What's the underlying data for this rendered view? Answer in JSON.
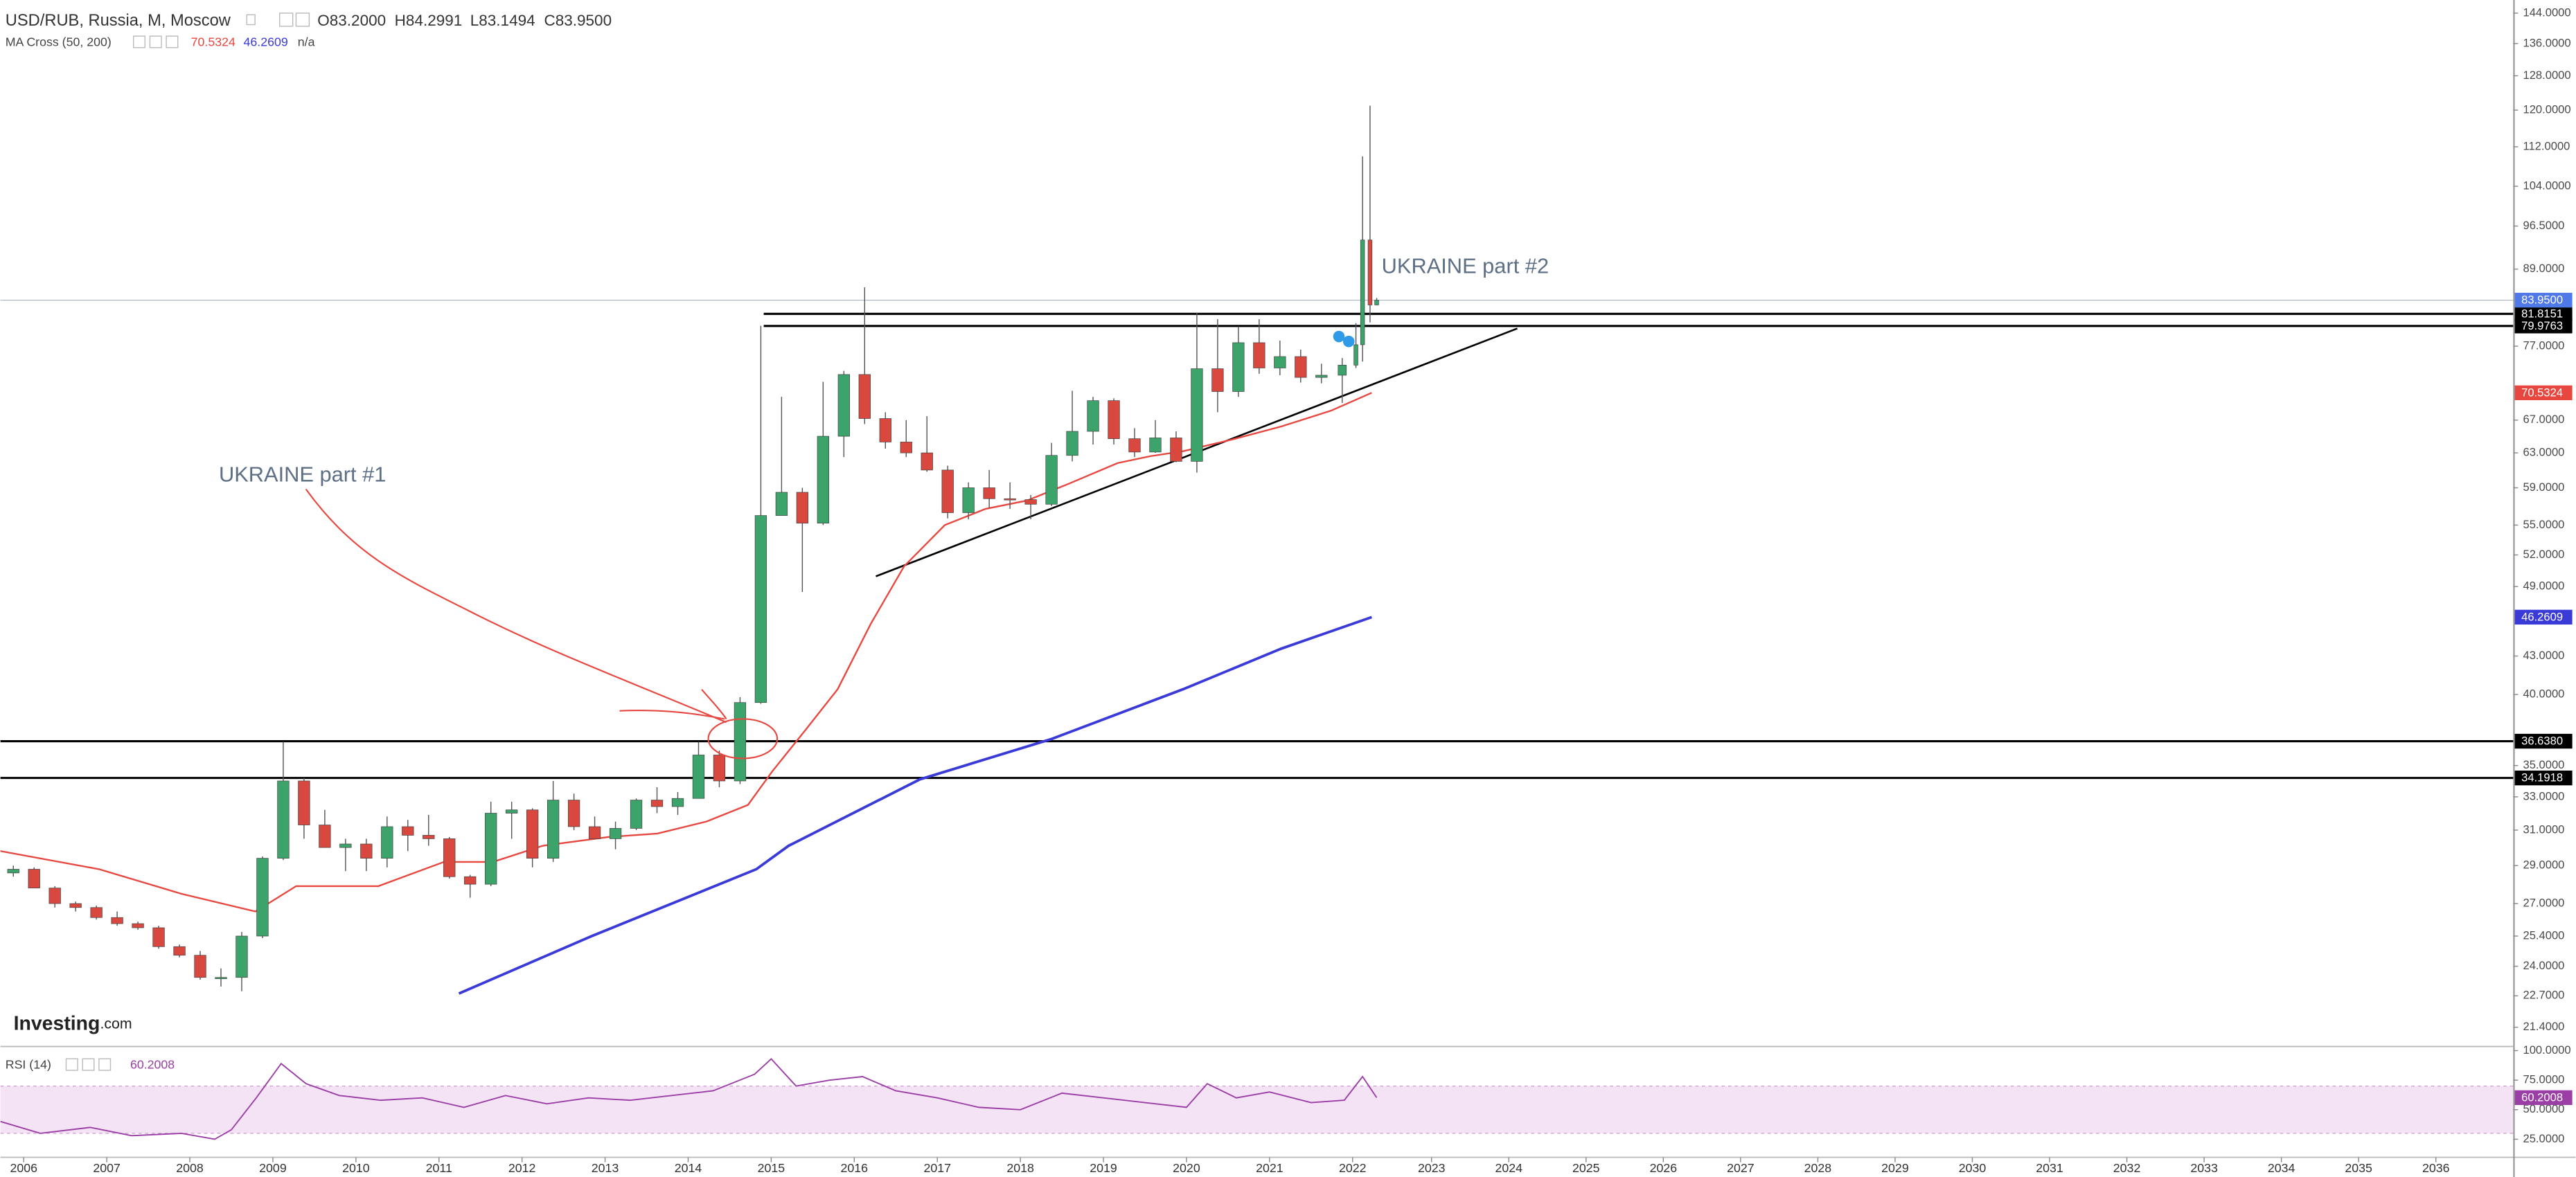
{
  "chart_data": {
    "type": "candlestick",
    "title": "USD/RUB, Russia, M, Moscow",
    "ohlc_labels": [
      "O83.2000",
      "H84.2991",
      "L83.1494",
      "C83.9500"
    ],
    "up_color": "#3ca46b",
    "down_color": "#d8483e",
    "log": true,
    "xlim": [
      2005.72,
      2037.0
    ],
    "xticks": [
      2006,
      2007,
      2008,
      2009,
      2010,
      2011,
      2012,
      2013,
      2014,
      2015,
      2016,
      2017,
      2018,
      2019,
      2020,
      2021,
      2022,
      2023,
      2024,
      2025,
      2026,
      2027,
      2028,
      2029,
      2030,
      2031,
      2032,
      2033,
      2034,
      2035,
      2036
    ],
    "ylim": [
      20.67,
      147.6
    ],
    "yticks": [
      {
        "value": 144,
        "label": "144.0000"
      },
      {
        "value": 136,
        "label": "136.0000"
      },
      {
        "value": 128,
        "label": "128.0000"
      },
      {
        "value": 120,
        "label": "120.0000"
      },
      {
        "value": 112,
        "label": "112.0000"
      },
      {
        "value": 104,
        "label": "104.0000"
      },
      {
        "value": 96.5,
        "label": "96.5000"
      },
      {
        "value": 89,
        "label": "89.0000"
      },
      {
        "value": 77,
        "label": "77.0000"
      },
      {
        "value": 67,
        "label": "67.0000"
      },
      {
        "value": 63,
        "label": "63.0000"
      },
      {
        "value": 59,
        "label": "59.0000"
      },
      {
        "value": 55,
        "label": "55.0000"
      },
      {
        "value": 52,
        "label": "52.0000"
      },
      {
        "value": 49,
        "label": "49.0000"
      },
      {
        "value": 43,
        "label": "43.0000"
      },
      {
        "value": 40,
        "label": "40.0000"
      },
      {
        "value": 35,
        "label": "35.0000"
      },
      {
        "value": 33,
        "label": "33.0000"
      },
      {
        "value": 31,
        "label": "31.0000"
      },
      {
        "value": 29,
        "label": "29.0000"
      },
      {
        "value": 27,
        "label": "27.0000"
      },
      {
        "value": 25.4,
        "label": "25.4000"
      },
      {
        "value": 24,
        "label": "24.0000"
      },
      {
        "value": 22.7,
        "label": "22.7000"
      },
      {
        "value": 21.4,
        "label": "21.4000"
      }
    ],
    "x": [
      2005.875,
      2006.125,
      2006.375,
      2006.625,
      2006.875,
      2007.125,
      2007.375,
      2007.625,
      2007.875,
      2008.125,
      2008.375,
      2008.625,
      2008.875,
      2009.125,
      2009.375,
      2009.625,
      2009.875,
      2010.125,
      2010.375,
      2010.625,
      2010.875,
      2011.125,
      2011.375,
      2011.625,
      2011.875,
      2012.125,
      2012.375,
      2012.625,
      2012.875,
      2013.125,
      2013.375,
      2013.625,
      2013.875,
      2014.125,
      2014.375,
      2014.625,
      2014.875,
      2015.125,
      2015.375,
      2015.625,
      2015.875,
      2016.125,
      2016.375,
      2016.625,
      2016.875,
      2017.125,
      2017.375,
      2017.625,
      2017.875,
      2018.125,
      2018.375,
      2018.625,
      2018.875,
      2019.125,
      2019.375,
      2019.625,
      2019.875,
      2020.125,
      2020.375,
      2020.625,
      2020.875,
      2021.125,
      2021.375,
      2021.625,
      2021.875,
      2022.04,
      2022.12,
      2022.21,
      2022.29
    ],
    "open": [
      28.6,
      28.8,
      27.8,
      27.0,
      26.8,
      26.3,
      26.0,
      25.8,
      24.9,
      24.5,
      23.5,
      23.5,
      25.4,
      29.4,
      34.0,
      31.3,
      30.0,
      30.2,
      29.4,
      31.2,
      30.7,
      30.5,
      28.4,
      28.0,
      32.0,
      32.2,
      29.4,
      32.8,
      31.2,
      30.5,
      31.1,
      32.8,
      32.4,
      32.9,
      35.7,
      34.0,
      39.4,
      56.0,
      58.5,
      55.2,
      65.0,
      73.0,
      67.2,
      64.3,
      63.0,
      61.0,
      56.3,
      59.0,
      57.8,
      57.7,
      57.2,
      62.7,
      65.6,
      69.5,
      64.7,
      63.1,
      64.8,
      62.0,
      73.8,
      70.7,
      77.5,
      73.9,
      75.5,
      72.6,
      72.9,
      74.3,
      77.2,
      94.0,
      83.2
    ],
    "high": [
      29.0,
      28.9,
      27.9,
      27.1,
      26.9,
      26.6,
      26.1,
      25.9,
      25.0,
      24.7,
      23.9,
      25.6,
      29.5,
      36.6,
      34.2,
      32.2,
      30.5,
      30.5,
      31.8,
      31.6,
      31.9,
      30.6,
      28.5,
      32.7,
      32.7,
      32.3,
      34.0,
      33.2,
      31.8,
      31.5,
      32.9,
      33.6,
      33.3,
      36.6,
      36.0,
      39.8,
      80.0,
      70.0,
      59.0,
      72.0,
      73.5,
      86.0,
      68.0,
      67.0,
      67.5,
      61.5,
      59.6,
      61.0,
      59.6,
      58.2,
      64.2,
      70.8,
      70.0,
      69.8,
      66.0,
      67.0,
      65.6,
      82.0,
      81.0,
      79.9,
      81.0,
      77.8,
      76.5,
      74.5,
      75.3,
      80.4,
      110.0,
      121.0,
      84.2991
    ],
    "low": [
      28.4,
      27.8,
      26.8,
      26.6,
      26.2,
      25.9,
      25.7,
      24.8,
      24.4,
      23.4,
      23.1,
      22.9,
      25.3,
      29.3,
      30.5,
      30.0,
      28.7,
      28.7,
      28.9,
      29.8,
      30.1,
      28.3,
      27.3,
      27.9,
      30.5,
      28.9,
      29.2,
      31.0,
      30.5,
      29.9,
      31.0,
      32.0,
      31.9,
      32.9,
      33.6,
      33.8,
      39.3,
      56.0,
      48.5,
      55.0,
      62.5,
      66.5,
      63.5,
      62.5,
      60.8,
      55.7,
      55.6,
      56.8,
      56.7,
      55.6,
      57.0,
      62.0,
      64.0,
      64.0,
      62.5,
      63.0,
      61.9,
      60.7,
      68.0,
      70.0,
      73.1,
      72.9,
      71.9,
      71.8,
      69.2,
      73.9,
      74.8,
      80.5,
      83.1494
    ],
    "close": [
      28.8,
      27.8,
      27.0,
      26.8,
      26.3,
      26.0,
      25.8,
      24.9,
      24.5,
      23.5,
      23.5,
      25.4,
      29.4,
      34.0,
      31.3,
      30.0,
      30.2,
      29.4,
      31.2,
      30.7,
      30.5,
      28.4,
      28.0,
      32.0,
      32.2,
      29.4,
      32.8,
      31.2,
      30.5,
      31.1,
      32.8,
      32.4,
      32.9,
      35.7,
      34.0,
      39.4,
      56.0,
      58.5,
      55.2,
      65.0,
      73.0,
      67.2,
      64.3,
      63.0,
      61.0,
      56.3,
      59.0,
      57.8,
      57.7,
      57.2,
      62.7,
      65.6,
      69.5,
      64.7,
      63.1,
      64.8,
      62.0,
      73.8,
      70.7,
      77.5,
      73.9,
      75.5,
      72.6,
      72.9,
      74.3,
      77.2,
      94.0,
      83.2,
      83.95
    ],
    "last": {
      "value": 83.95,
      "label": "83.9500",
      "color": "#4f79e8"
    },
    "indicator": {
      "name": "MA Cross (50, 200)",
      "na": "n/a",
      "series": [
        {
          "color": "#e8473f",
          "x": [
            2005.72,
            2006.91,
            2007.9,
            2008.79,
            2009.28,
            2010.27,
            2011.06,
            2011.65,
            2012.25,
            2013.04,
            2013.63,
            2014.22,
            2014.72,
            2015.01,
            2015.41,
            2015.8,
            2016.2,
            2016.6,
            2017.09,
            2017.58,
            2018.08,
            2018.57,
            2019.17,
            2019.56,
            2019.96,
            2020.55,
            2021.14,
            2021.74,
            2022.23
          ],
          "values": [
            29.8,
            28.8,
            27.5,
            26.6,
            27.9,
            27.9,
            29.2,
            29.2,
            30.1,
            30.6,
            30.8,
            31.5,
            32.5,
            34.6,
            37.4,
            40.4,
            45.7,
            50.9,
            55.0,
            56.7,
            57.6,
            59.4,
            61.8,
            62.6,
            63.2,
            64.6,
            66.2,
            68.2,
            70.5324
          ]
        },
        {
          "color": "#3a3ad8",
          "x": [
            2011.24,
            2012.84,
            2014.82,
            2015.21,
            2016.79,
            2018.38,
            2019.96,
            2021.14,
            2022.23
          ],
          "values": [
            22.8,
            25.4,
            28.8,
            30.1,
            34.1,
            36.8,
            40.4,
            43.6,
            46.2609
          ]
        }
      ]
    },
    "levels": [
      {
        "value": 81.8151,
        "label": "81.8151",
        "x0": 2014.91
      },
      {
        "value": 79.9763,
        "label": "79.9763",
        "x0": 2014.91
      },
      {
        "value": 36.638,
        "label": "36.6380",
        "x0": 2005.72
      },
      {
        "value": 34.1918,
        "label": "34.1918",
        "x0": 2005.72
      }
    ],
    "trendline": {
      "x": [
        2016.26,
        2024.11
      ],
      "y": [
        49.95,
        79.6
      ]
    },
    "annotations": [
      "UKRAINE part #1",
      "UKRAINE part #2"
    ],
    "logo": [
      "Investing",
      ".com"
    ],
    "rsi": {
      "name": "RSI (14)",
      "color": "#9b3fa6",
      "ylim": [
        9.7,
        102.8
      ],
      "band": [
        30,
        70
      ],
      "yticks": [
        {
          "value": 100,
          "label": "100.0000"
        },
        {
          "value": 75,
          "label": "75.0000"
        },
        {
          "value": 50,
          "label": "50.0000"
        },
        {
          "value": 25,
          "label": "25.0000"
        }
      ],
      "x": [
        2005.72,
        2006.2,
        2006.8,
        2007.3,
        2007.9,
        2008.3,
        2008.5,
        2008.8,
        2009.1,
        2009.4,
        2009.8,
        2010.3,
        2010.8,
        2011.3,
        2011.8,
        2012.3,
        2012.8,
        2013.3,
        2013.8,
        2014.3,
        2014.8,
        2015.0,
        2015.3,
        2015.7,
        2016.1,
        2016.5,
        2017.0,
        2017.5,
        2018.0,
        2018.5,
        2019.0,
        2019.5,
        2020.0,
        2020.25,
        2020.6,
        2021.0,
        2021.5,
        2021.9,
        2022.12,
        2022.29
      ],
      "values": [
        40,
        30,
        35,
        28,
        30,
        25,
        33,
        60,
        89,
        72,
        62,
        58,
        60,
        52,
        62,
        55,
        60,
        58,
        62,
        66,
        80,
        93,
        70,
        75,
        78,
        66,
        60,
        52,
        50,
        64,
        60,
        56,
        52,
        72,
        60,
        65,
        56,
        58,
        78,
        60.2008
      ]
    }
  }
}
